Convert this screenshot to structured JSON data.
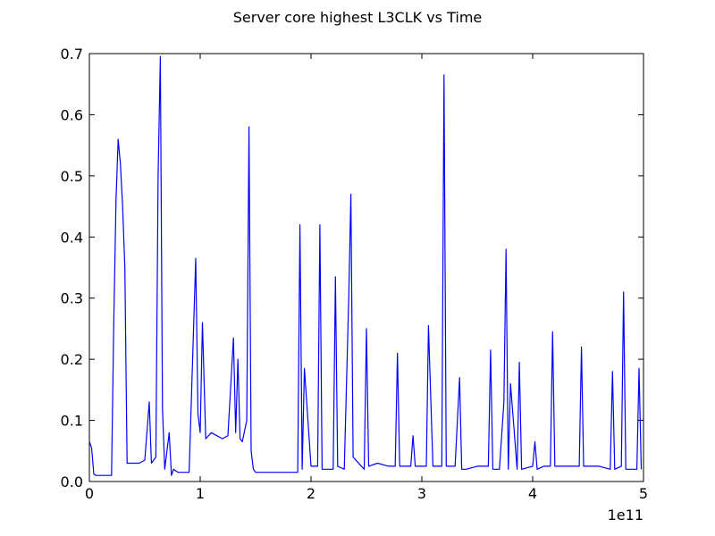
{
  "chart_data": {
    "type": "line",
    "title": "Server core highest L3CLK vs Time",
    "xlabel": "",
    "ylabel": "",
    "x_offset_label": "1e11",
    "xlim": [
      0,
      5
    ],
    "ylim": [
      0,
      0.7
    ],
    "x_ticks": [
      0,
      1,
      2,
      3,
      4,
      5
    ],
    "x_tick_labels": [
      "0",
      "1",
      "2",
      "3",
      "4",
      "5"
    ],
    "y_ticks": [
      0.0,
      0.1,
      0.2,
      0.3,
      0.4,
      0.5,
      0.6,
      0.7
    ],
    "y_tick_labels": [
      "0.0",
      "0.1",
      "0.2",
      "0.3",
      "0.4",
      "0.5",
      "0.6",
      "0.7"
    ],
    "grid": false,
    "legend": "none",
    "line_color": "#0000ff",
    "series": [
      {
        "x": [
          0.0,
          0.02,
          0.04,
          0.06,
          0.08,
          0.1,
          0.15,
          0.2,
          0.22,
          0.24,
          0.26,
          0.28,
          0.3,
          0.32,
          0.34,
          0.36,
          0.4,
          0.45,
          0.5,
          0.54,
          0.56,
          0.58,
          0.6,
          0.62,
          0.64,
          0.66,
          0.68,
          0.72,
          0.74,
          0.76,
          0.8,
          0.85,
          0.9,
          0.96,
          0.98,
          1.0,
          1.02,
          1.05,
          1.1,
          1.15,
          1.2,
          1.25,
          1.3,
          1.32,
          1.34,
          1.36,
          1.38,
          1.42,
          1.44,
          1.46,
          1.48,
          1.5,
          1.6,
          1.7,
          1.8,
          1.88,
          1.9,
          1.92,
          1.94,
          2.0,
          2.06,
          2.08,
          2.1,
          2.2,
          2.22,
          2.24,
          2.3,
          2.34,
          2.36,
          2.38,
          2.48,
          2.5,
          2.52,
          2.6,
          2.7,
          2.76,
          2.78,
          2.8,
          2.9,
          2.92,
          2.94,
          3.0,
          3.04,
          3.06,
          3.1,
          3.18,
          3.2,
          3.22,
          3.3,
          3.34,
          3.36,
          3.4,
          3.5,
          3.6,
          3.62,
          3.64,
          3.7,
          3.74,
          3.76,
          3.78,
          3.8,
          3.86,
          3.88,
          3.9,
          4.0,
          4.02,
          4.04,
          4.1,
          4.16,
          4.18,
          4.2,
          4.3,
          4.42,
          4.44,
          4.46,
          4.6,
          4.7,
          4.72,
          4.74,
          4.8,
          4.82,
          4.84,
          4.9,
          4.94,
          4.96,
          4.98
        ],
        "y": [
          0.065,
          0.055,
          0.012,
          0.01,
          0.01,
          0.01,
          0.01,
          0.01,
          0.26,
          0.46,
          0.56,
          0.52,
          0.45,
          0.35,
          0.03,
          0.03,
          0.03,
          0.03,
          0.035,
          0.13,
          0.03,
          0.035,
          0.04,
          0.5,
          0.695,
          0.12,
          0.02,
          0.08,
          0.01,
          0.02,
          0.015,
          0.015,
          0.015,
          0.365,
          0.11,
          0.08,
          0.26,
          0.07,
          0.08,
          0.075,
          0.07,
          0.075,
          0.235,
          0.08,
          0.2,
          0.07,
          0.065,
          0.1,
          0.58,
          0.05,
          0.02,
          0.015,
          0.015,
          0.015,
          0.015,
          0.015,
          0.42,
          0.02,
          0.185,
          0.025,
          0.025,
          0.42,
          0.02,
          0.02,
          0.335,
          0.025,
          0.02,
          0.3,
          0.47,
          0.04,
          0.02,
          0.25,
          0.025,
          0.03,
          0.025,
          0.025,
          0.21,
          0.025,
          0.025,
          0.075,
          0.025,
          0.025,
          0.025,
          0.255,
          0.025,
          0.025,
          0.665,
          0.025,
          0.025,
          0.17,
          0.02,
          0.02,
          0.025,
          0.025,
          0.215,
          0.02,
          0.02,
          0.13,
          0.38,
          0.02,
          0.16,
          0.02,
          0.195,
          0.02,
          0.025,
          0.065,
          0.02,
          0.025,
          0.025,
          0.245,
          0.025,
          0.025,
          0.025,
          0.22,
          0.025,
          0.025,
          0.02,
          0.18,
          0.02,
          0.025,
          0.31,
          0.02,
          0.02,
          0.02,
          0.185,
          0.02
        ]
      }
    ]
  }
}
